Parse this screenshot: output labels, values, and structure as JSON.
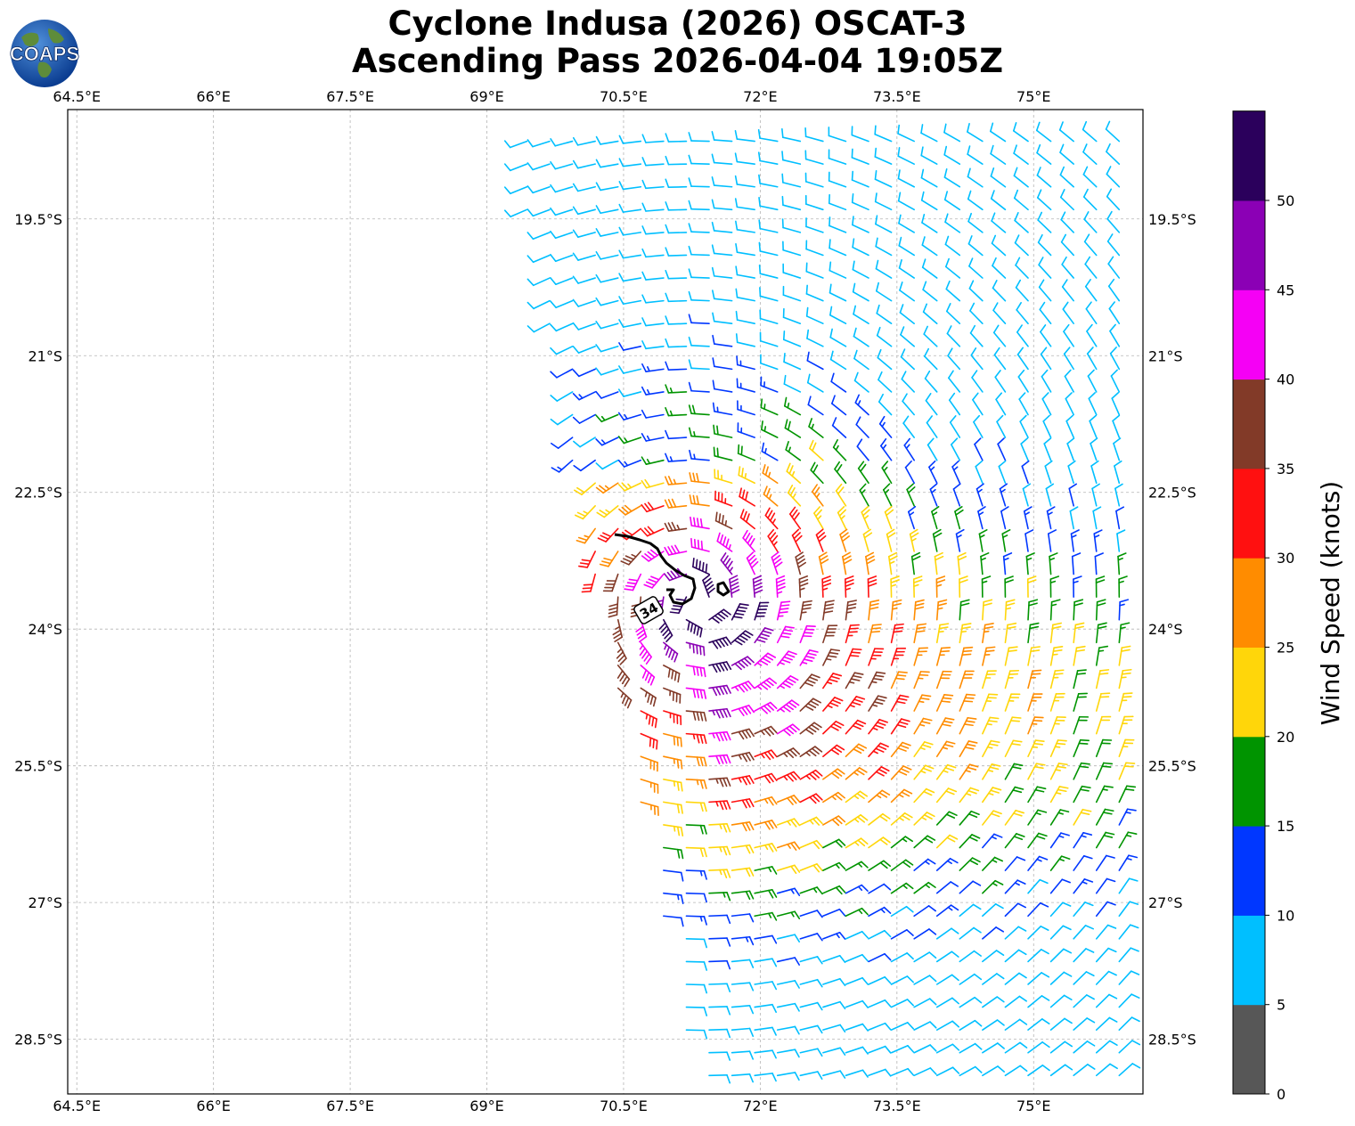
{
  "title": {
    "line1": "Cyclone Indusa (2026) OSCAT-3",
    "line2": "Ascending Pass 2026-04-04 19:05Z"
  },
  "logo": {
    "text": "COAPS"
  },
  "axes": {
    "lon_ticks": [
      "64.5°E",
      "66°E",
      "67.5°E",
      "69°E",
      "70.5°E",
      "72°E",
      "73.5°E",
      "75°E"
    ],
    "lon_values": [
      64.5,
      66,
      67.5,
      69,
      70.5,
      72,
      73.5,
      75
    ],
    "lat_ticks": [
      "19.5°S",
      "21°S",
      "22.5°S",
      "24°S",
      "25.5°S",
      "27°S",
      "28.5°S"
    ],
    "lat_values": [
      -19.5,
      -21,
      -22.5,
      -24,
      -25.5,
      -27,
      -28.5
    ],
    "lon_range": [
      64.4,
      76.2
    ],
    "lat_range": [
      -29.1,
      -18.3
    ],
    "grid": true
  },
  "colorbar": {
    "label": "Wind Speed (knots)",
    "tick_labels": [
      "0",
      "5",
      "10",
      "15",
      "20",
      "25",
      "30",
      "35",
      "40",
      "45",
      "50"
    ],
    "bins": [
      {
        "min": 0,
        "max": 5,
        "color": "#575757"
      },
      {
        "min": 5,
        "max": 10,
        "color": "#00bfff"
      },
      {
        "min": 10,
        "max": 15,
        "color": "#0037ff"
      },
      {
        "min": 15,
        "max": 20,
        "color": "#009400"
      },
      {
        "min": 20,
        "max": 25,
        "color": "#ffd60a"
      },
      {
        "min": 25,
        "max": 30,
        "color": "#ff8c00"
      },
      {
        "min": 30,
        "max": 35,
        "color": "#ff1010"
      },
      {
        "min": 35,
        "max": 40,
        "color": "#823a28"
      },
      {
        "min": 40,
        "max": 45,
        "color": "#f500f5"
      },
      {
        "min": 45,
        "max": 50,
        "color": "#8b00b5"
      },
      {
        "min": 50,
        "max": 55,
        "color": "#2b005c"
      }
    ]
  },
  "contour": {
    "label": "34",
    "level_knots": 34,
    "color": "#000000"
  },
  "swath": {
    "corners_lonlat": [
      [
        69.2,
        -18.4
      ],
      [
        76.2,
        -18.4
      ],
      [
        76.2,
        -29.1
      ],
      [
        71.3,
        -29.1
      ]
    ],
    "center_lonlat": [
      71.3,
      -23.7
    ]
  },
  "chart_data": {
    "type": "wind-barb-map",
    "variable": "Wind Speed (knots)",
    "grid_step_deg": 0.25,
    "model": "cyclonic vortex, Southern Hemisphere (clockwise), max ~50 kt near center"
  }
}
